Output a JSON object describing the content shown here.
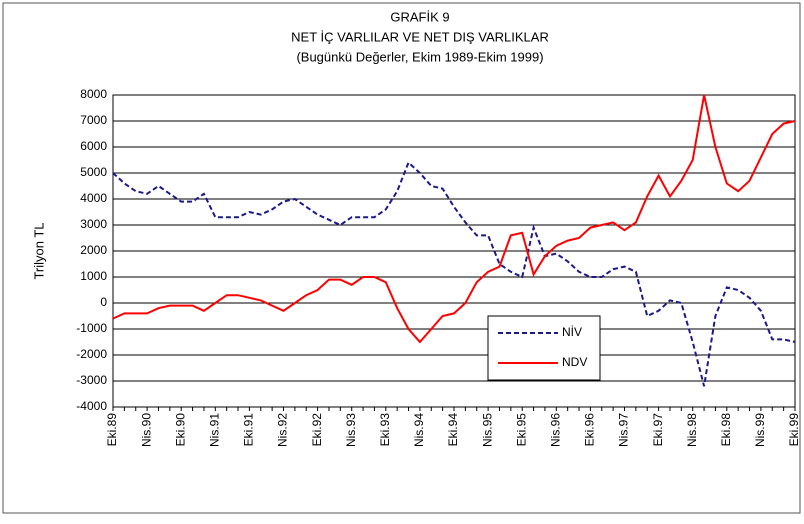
{
  "chart_data": {
    "type": "line",
    "title": [
      "GRAFİK 9",
      "NET İÇ VARLILAR VE NET DIŞ VARLIKLAR",
      "(Bugünkü Değerler, Ekim 1989-Ekim 1999)"
    ],
    "y_label": "Trilyon TL",
    "categories": [
      "Eki.89",
      null,
      null,
      "Nis.90",
      null,
      null,
      "Eki.90",
      null,
      null,
      "Nis.91",
      null,
      null,
      "Eki.91",
      null,
      null,
      "Nis.92",
      null,
      null,
      "Eki.92",
      null,
      null,
      "Nis.93",
      null,
      null,
      "Eki.93",
      null,
      null,
      "Nis.94",
      null,
      null,
      "Eki.94",
      null,
      null,
      "Nis.95",
      null,
      null,
      "Eki.95",
      null,
      null,
      "Nis.96",
      null,
      null,
      "Eki.96",
      null,
      null,
      "Nis.97",
      null,
      null,
      "Eki.97",
      null,
      null,
      "Nis.98",
      null,
      null,
      "Eki.98",
      null,
      null,
      "Nis.99",
      null,
      null,
      "Eki.99"
    ],
    "series": [
      {
        "name": "NİV",
        "color": "#1a1a8c",
        "style": "dashed",
        "values": [
          5000,
          4600,
          4300,
          4200,
          4500,
          4200,
          3900,
          3900,
          4200,
          3300,
          3300,
          3300,
          3500,
          3400,
          3600,
          3900,
          4000,
          3700,
          3400,
          3200,
          3000,
          3300,
          3300,
          3300,
          3600,
          4300,
          5400,
          5000,
          4500,
          4400,
          3700,
          3100,
          2600,
          2600,
          1500,
          1200,
          1000,
          2900,
          1800,
          1900,
          1600,
          1200,
          1000,
          1000,
          1300,
          1400,
          1200,
          -500,
          -300,
          100,
          0,
          -1500,
          -3200,
          -500,
          600,
          500,
          200,
          -300,
          -1400,
          -1400,
          -1500
        ]
      },
      {
        "name": "NDV",
        "color": "#ff0000",
        "style": "solid",
        "values": [
          -600,
          -400,
          -400,
          -400,
          -200,
          -100,
          -100,
          -100,
          -300,
          0,
          300,
          300,
          200,
          100,
          -100,
          -300,
          0,
          300,
          500,
          900,
          900,
          700,
          1000,
          1000,
          800,
          -200,
          -1000,
          -1500,
          -1000,
          -500,
          -400,
          0,
          800,
          1200,
          1400,
          2600,
          2700,
          1100,
          1800,
          2200,
          2400,
          2500,
          2900,
          3000,
          3100,
          2800,
          3100,
          4100,
          4900,
          4100,
          4700,
          5500,
          8000,
          6000,
          4600,
          4300,
          4700,
          5600,
          6500,
          6900,
          7000
        ]
      }
    ],
    "ylim": [
      -4000,
      8000
    ],
    "yticks": [
      -4000,
      -3000,
      -2000,
      -1000,
      0,
      1000,
      2000,
      3000,
      4000,
      5000,
      6000,
      7000,
      8000
    ],
    "grid": true,
    "legend": "center"
  }
}
